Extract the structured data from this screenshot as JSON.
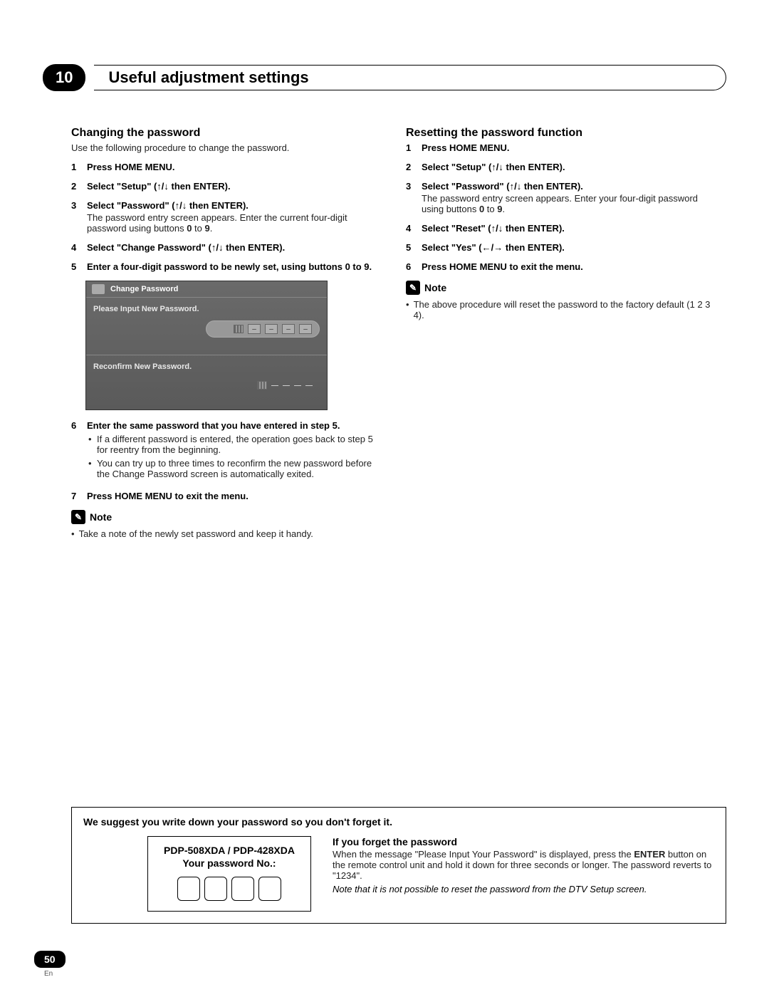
{
  "chapter": {
    "number": "10",
    "title": "Useful adjustment settings"
  },
  "left": {
    "heading": "Changing the password",
    "intro": "Use the following procedure to change the password.",
    "steps": [
      {
        "n": "1",
        "main": "Press HOME MENU."
      },
      {
        "n": "2",
        "main_prefix": "Select \"Setup\" (",
        "main_suffix": " then ENTER).",
        "arrows": "↑/↓"
      },
      {
        "n": "3",
        "main_prefix": "Select \"Password\" (",
        "main_suffix": " then ENTER).",
        "arrows": "↑/↓",
        "detail": "The password entry screen appears. Enter the current four-digit password using buttons ",
        "detail_bold1": "0",
        "detail_mid": " to ",
        "detail_bold2": "9",
        "detail_end": "."
      },
      {
        "n": "4",
        "main_prefix": "Select \"Change Password\" (",
        "main_suffix": " then ENTER).",
        "arrows": "↑/↓"
      },
      {
        "n": "5",
        "main": "Enter a four-digit password to be newly set, using buttons 0 to 9."
      }
    ],
    "ui": {
      "title": "Change Password",
      "row1": "Please Input New Password.",
      "row2": "Reconfirm New Password."
    },
    "steps2": [
      {
        "n": "6",
        "main": "Enter the same password that you have entered in step 5.",
        "bullets": [
          "If a different password is entered, the operation goes back to step 5 for reentry from the beginning.",
          "You can try up to three times to reconfirm the new password before the Change Password screen is automatically exited."
        ]
      },
      {
        "n": "7",
        "main": "Press HOME MENU to exit the menu."
      }
    ],
    "note_label": "Note",
    "note_text": "Take a note of the newly set password and keep it handy."
  },
  "right": {
    "heading": "Resetting the password function",
    "steps": [
      {
        "n": "1",
        "main": "Press HOME MENU."
      },
      {
        "n": "2",
        "main_prefix": "Select \"Setup\" (",
        "main_suffix": " then ENTER).",
        "arrows": "↑/↓"
      },
      {
        "n": "3",
        "main_prefix": "Select \"Password\" (",
        "main_suffix": " then ENTER).",
        "arrows": "↑/↓",
        "detail": "The password entry screen appears. Enter your four-digit password using buttons ",
        "detail_bold1": "0",
        "detail_mid": " to ",
        "detail_bold2": "9",
        "detail_end": "."
      },
      {
        "n": "4",
        "main_prefix": "Select \"Reset\" (",
        "main_suffix": " then ENTER).",
        "arrows": "↑/↓"
      },
      {
        "n": "5",
        "main_prefix": "Select \"Yes\" (",
        "main_suffix": " then ENTER).",
        "arrows": "←/→"
      },
      {
        "n": "6",
        "main": "Press HOME MENU to exit the menu."
      }
    ],
    "note_label": "Note",
    "note_text": "The above procedure will reset the password to the factory default (1 2 3 4)."
  },
  "bottom": {
    "heading": "We suggest you write down your password so you don't forget it.",
    "card_line1": "PDP-508XDA / PDP-428XDA",
    "card_line2": "Your password No.:",
    "forget_heading": "If you forget the password",
    "forget_text_pre": "When the message \"Please Input Your Password\" is displayed, press the ",
    "forget_text_bold": "ENTER",
    "forget_text_post": " button on the remote control unit and hold it down for three seconds or longer. The password reverts to \"1234\".",
    "forget_note": "Note that it is not possible to reset the password from the DTV Setup screen."
  },
  "page": {
    "number": "50",
    "lang": "En"
  }
}
